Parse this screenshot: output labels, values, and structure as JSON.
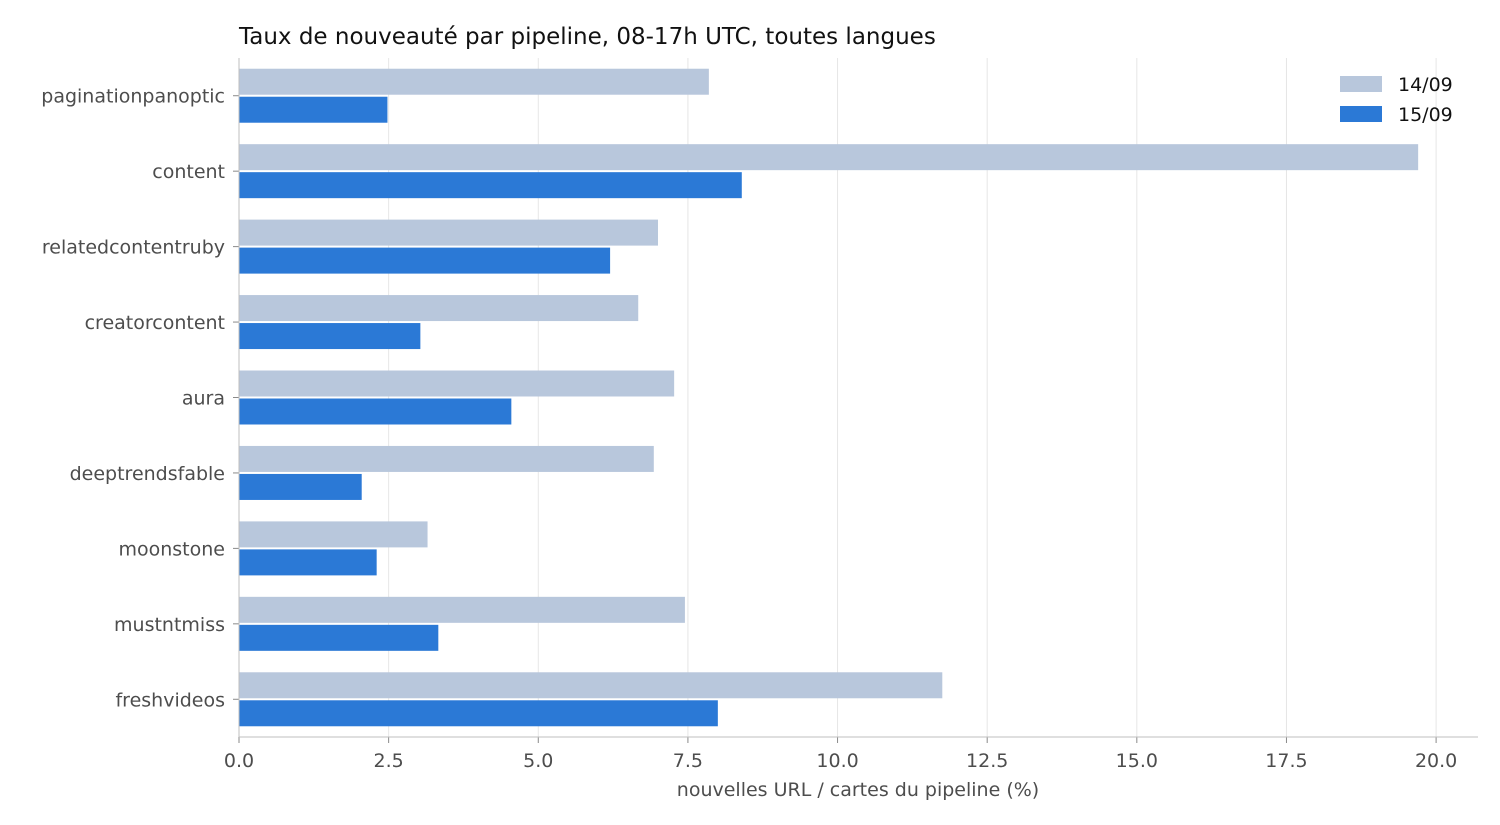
{
  "chart_data": {
    "type": "bar",
    "orientation": "horizontal",
    "title": "Taux de nouveauté par pipeline, 08-17h UTC, toutes langues",
    "xlabel": "nouvelles URL / cartes du pipeline (%)",
    "ylabel": "",
    "xlim": [
      0,
      20.7
    ],
    "xticks": [
      0.0,
      2.5,
      5.0,
      7.5,
      10.0,
      12.5,
      15.0,
      17.5,
      20.0
    ],
    "xtick_labels": [
      "0.0",
      "2.5",
      "5.0",
      "7.5",
      "10.0",
      "12.5",
      "15.0",
      "17.5",
      "20.0"
    ],
    "grid": "x",
    "legend_position": "top-right",
    "categories": [
      "paginationpanoptic",
      "content",
      "relatedcontentruby",
      "creatorcontent",
      "aura",
      "deeptrendsfable",
      "moonstone",
      "mustntmiss",
      "freshvideos"
    ],
    "series": [
      {
        "name": "14/09",
        "color": "#b8c7dc",
        "values": [
          7.85,
          19.7,
          7.0,
          6.67,
          7.27,
          6.93,
          3.15,
          7.45,
          11.75
        ]
      },
      {
        "name": "15/09",
        "color": "#2b79d6",
        "values": [
          2.48,
          8.4,
          6.2,
          3.03,
          4.55,
          2.05,
          2.3,
          3.33,
          8.0
        ]
      }
    ]
  }
}
